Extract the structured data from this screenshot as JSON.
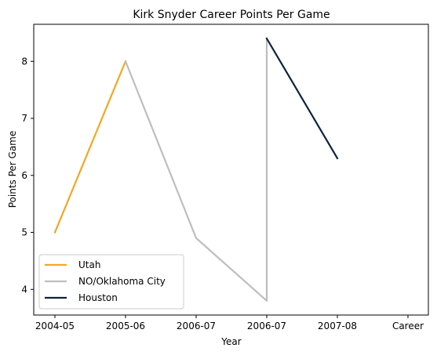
{
  "chart_data": {
    "type": "line",
    "title": "Kirk Snyder Career Points Per Game",
    "xlabel": "Year",
    "ylabel": "Points Per Game",
    "categories": [
      "2004-05",
      "2005-06",
      "2006-07",
      "2006-07",
      "2007-08",
      "Career"
    ],
    "ylim": [
      3.55,
      8.65
    ],
    "yticks": [
      4,
      5,
      6,
      7,
      8
    ],
    "grid": false,
    "legend_position": "lower-left",
    "series": [
      {
        "name": "Utah",
        "color": "#F5A623",
        "points": [
          {
            "x": 0,
            "y": 5.0
          },
          {
            "x": 1,
            "y": 8.0
          }
        ]
      },
      {
        "name": "NO/Oklahoma City",
        "color": "#BEBEBE",
        "points": [
          {
            "x": 1,
            "y": 8.0
          },
          {
            "x": 2,
            "y": 4.9
          },
          {
            "x": 3,
            "y": 3.8
          },
          {
            "x": 3,
            "y": 8.4
          }
        ]
      },
      {
        "name": "Houston",
        "color": "#0C2340",
        "points": [
          {
            "x": 3,
            "y": 8.4
          },
          {
            "x": 4,
            "y": 6.3
          }
        ]
      }
    ]
  }
}
